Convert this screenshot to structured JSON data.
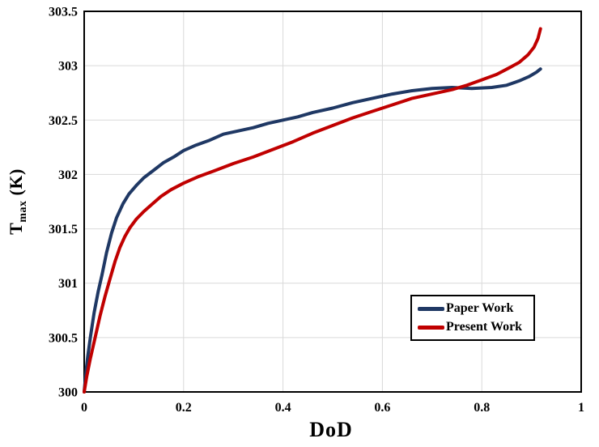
{
  "figure": {
    "background": "#ffffff"
  },
  "chart_data": {
    "type": "line",
    "title": "",
    "xlabel": "DoD",
    "ylabel": {
      "main": "T",
      "sub": "max",
      "suffix": " (K)"
    },
    "xlim": [
      0,
      1
    ],
    "ylim": [
      300,
      303.5
    ],
    "x_ticks": {
      "values": [
        0,
        0.2,
        0.4,
        0.6,
        0.8,
        1
      ],
      "labels": [
        "0",
        "0.2",
        "0.4",
        "0.6",
        "0.8",
        "1"
      ]
    },
    "y_ticks": {
      "values": [
        300,
        300.5,
        301,
        301.5,
        302,
        302.5,
        303,
        303.5
      ],
      "labels": [
        "300",
        "300.5",
        "301",
        "301.5",
        "302",
        "302.5",
        "303",
        "303.5"
      ]
    },
    "grid": true,
    "grid_color": "#d9d9d9",
    "axis_color": "#000000",
    "legend": {
      "position": "inside-lower-right",
      "border_color": "#000000",
      "background": "#ffffff"
    },
    "series": [
      {
        "name": "Paper Work",
        "color": "#1f3864",
        "line_width": 4,
        "points": [
          [
            0.0,
            300.0
          ],
          [
            0.003,
            300.15
          ],
          [
            0.007,
            300.32
          ],
          [
            0.013,
            300.52
          ],
          [
            0.02,
            300.73
          ],
          [
            0.028,
            300.92
          ],
          [
            0.036,
            301.08
          ],
          [
            0.045,
            301.28
          ],
          [
            0.055,
            301.46
          ],
          [
            0.065,
            301.6
          ],
          [
            0.078,
            301.73
          ],
          [
            0.09,
            301.82
          ],
          [
            0.105,
            301.9
          ],
          [
            0.12,
            301.97
          ],
          [
            0.14,
            302.04
          ],
          [
            0.16,
            302.11
          ],
          [
            0.18,
            302.16
          ],
          [
            0.2,
            302.22
          ],
          [
            0.225,
            302.27
          ],
          [
            0.25,
            302.31
          ],
          [
            0.28,
            302.37
          ],
          [
            0.31,
            302.4
          ],
          [
            0.34,
            302.43
          ],
          [
            0.37,
            302.47
          ],
          [
            0.4,
            302.5
          ],
          [
            0.43,
            302.53
          ],
          [
            0.46,
            302.57
          ],
          [
            0.5,
            302.61
          ],
          [
            0.54,
            302.66
          ],
          [
            0.58,
            302.7
          ],
          [
            0.62,
            302.74
          ],
          [
            0.66,
            302.77
          ],
          [
            0.7,
            302.79
          ],
          [
            0.74,
            302.8
          ],
          [
            0.78,
            302.79
          ],
          [
            0.82,
            302.8
          ],
          [
            0.85,
            302.82
          ],
          [
            0.875,
            302.86
          ],
          [
            0.895,
            302.9
          ],
          [
            0.91,
            302.94
          ],
          [
            0.918,
            302.97
          ]
        ]
      },
      {
        "name": "Present Work",
        "color": "#c00000",
        "line_width": 4,
        "points": [
          [
            0.0,
            300.0
          ],
          [
            0.005,
            300.14
          ],
          [
            0.012,
            300.3
          ],
          [
            0.022,
            300.5
          ],
          [
            0.032,
            300.7
          ],
          [
            0.042,
            300.88
          ],
          [
            0.052,
            301.04
          ],
          [
            0.062,
            301.2
          ],
          [
            0.072,
            301.33
          ],
          [
            0.082,
            301.43
          ],
          [
            0.092,
            301.51
          ],
          [
            0.105,
            301.59
          ],
          [
            0.12,
            301.66
          ],
          [
            0.135,
            301.72
          ],
          [
            0.155,
            301.8
          ],
          [
            0.175,
            301.86
          ],
          [
            0.2,
            301.92
          ],
          [
            0.23,
            301.98
          ],
          [
            0.26,
            302.03
          ],
          [
            0.3,
            302.1
          ],
          [
            0.34,
            302.16
          ],
          [
            0.38,
            302.23
          ],
          [
            0.42,
            302.3
          ],
          [
            0.46,
            302.38
          ],
          [
            0.5,
            302.45
          ],
          [
            0.54,
            302.52
          ],
          [
            0.58,
            302.58
          ],
          [
            0.62,
            302.64
          ],
          [
            0.66,
            302.7
          ],
          [
            0.7,
            302.74
          ],
          [
            0.74,
            302.78
          ],
          [
            0.77,
            302.82
          ],
          [
            0.8,
            302.87
          ],
          [
            0.83,
            302.92
          ],
          [
            0.855,
            302.98
          ],
          [
            0.875,
            303.03
          ],
          [
            0.893,
            303.1
          ],
          [
            0.905,
            303.17
          ],
          [
            0.913,
            303.25
          ],
          [
            0.918,
            303.34
          ]
        ]
      }
    ]
  }
}
